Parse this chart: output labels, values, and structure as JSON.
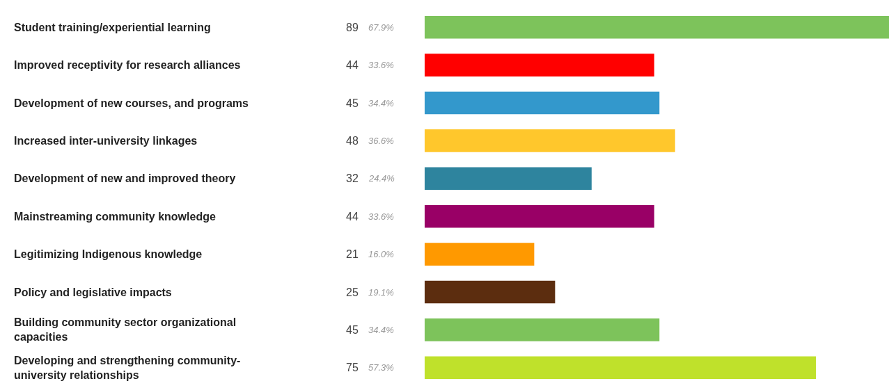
{
  "chart_data": {
    "type": "bar",
    "orientation": "horizontal",
    "categories": [
      "Student training/experiential learning",
      "Improved receptivity for research alliances",
      "Development of new courses, and programs",
      "Increased inter-university linkages",
      "Development of new and improved theory",
      "Mainstreaming community knowledge",
      "Legitimizing Indigenous knowledge",
      "Policy and legislative impacts",
      "Building community sector organizational capacities",
      "Developing and strengthening community-university relationships"
    ],
    "values": [
      89,
      44,
      45,
      48,
      32,
      44,
      21,
      25,
      45,
      75
    ],
    "colors": [
      "#7dc35b",
      "#ff0000",
      "#3398cc",
      "#ffc72c",
      "#2e849e",
      "#990066",
      "#ff9900",
      "#5c2d0f",
      "#7dc35b",
      "#bfe12b"
    ],
    "value_labels": [
      "89",
      "44",
      "45",
      "48",
      "32",
      "44",
      "21",
      "25",
      "45",
      "75"
    ],
    "annotations": [
      "67.9%",
      "33.6%",
      "34.4%",
      "36.6%",
      "24.4%",
      "33.6%",
      "16.0%",
      "19.1%",
      "34.4%",
      "57.3%"
    ],
    "grid": false,
    "legend": false
  }
}
